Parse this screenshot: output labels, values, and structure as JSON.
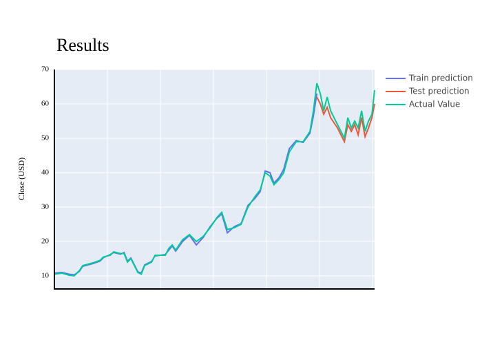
{
  "chart_data": {
    "type": "line",
    "title": "Results",
    "y_label": "Close (USD)",
    "xlim": [
      0,
      1209
    ],
    "xticks": [
      200,
      400,
      600,
      800,
      1000,
      1200
    ],
    "ylim": [
      6.2,
      70
    ],
    "yticks": [
      10,
      20,
      30,
      40,
      50,
      60,
      70
    ],
    "grid": true,
    "series": [
      {
        "name": "Train prediction",
        "color": "#636efa",
        "x": [
          0,
          29,
          55,
          75,
          94,
          107,
          146,
          172,
          185,
          211,
          224,
          250,
          263,
          276,
          289,
          315,
          328,
          341,
          367,
          380,
          419,
          432,
          445,
          458,
          484,
          510,
          536,
          562,
          588,
          614,
          632,
          653,
          679,
          705,
          731,
          757,
          777,
          796,
          814,
          829,
          848,
          866,
          887,
          913,
          939,
          965,
          978,
          991
        ],
        "values": [
          10.8,
          11,
          10.5,
          10.3,
          11.3,
          12.8,
          13.6,
          14.3,
          15.3,
          16.2,
          16.8,
          16.3,
          16.8,
          14.3,
          15.2,
          11.2,
          10.8,
          13.2,
          14.2,
          15.8,
          16.2,
          17.5,
          18.7,
          17.2,
          20,
          21.8,
          19,
          21.2,
          24.3,
          26.8,
          28,
          22.5,
          24.3,
          25.2,
          30.5,
          32.5,
          34.5,
          40.5,
          40,
          37,
          38.5,
          41,
          47,
          49.3,
          48.8,
          51.5,
          56.5,
          63
        ]
      },
      {
        "name": "Test prediction",
        "color": "#ef553b",
        "x": [
          991,
          1004,
          1017,
          1030,
          1043,
          1069,
          1095,
          1108,
          1121,
          1134,
          1147,
          1160,
          1173,
          1186,
          1199,
          1209
        ],
        "values": [
          62,
          60,
          57,
          59,
          56,
          53,
          49,
          54,
          52,
          54,
          51,
          56,
          50.5,
          53,
          56,
          60
        ]
      },
      {
        "name": "Actual Value",
        "color": "#00cc96",
        "x": [
          0,
          29,
          55,
          75,
          94,
          107,
          146,
          172,
          185,
          211,
          224,
          250,
          263,
          276,
          289,
          315,
          328,
          341,
          367,
          380,
          419,
          432,
          445,
          458,
          484,
          510,
          536,
          562,
          588,
          614,
          632,
          653,
          679,
          705,
          731,
          757,
          777,
          796,
          814,
          829,
          848,
          866,
          887,
          913,
          939,
          965,
          978,
          991,
          1004,
          1017,
          1030,
          1043,
          1069,
          1095,
          1108,
          1121,
          1134,
          1147,
          1160,
          1173,
          1186,
          1199,
          1209
        ],
        "values": [
          10.5,
          10.8,
          10.2,
          10,
          11.5,
          13,
          13.8,
          14.5,
          15.5,
          16,
          17,
          16.5,
          16.5,
          14,
          15,
          11,
          10.5,
          13,
          14,
          16,
          16,
          18,
          19,
          17.5,
          20.5,
          22,
          20,
          21.5,
          24,
          27,
          28.5,
          23.5,
          24,
          25,
          30,
          33,
          35,
          40,
          39,
          36.5,
          38,
          40,
          46,
          49,
          49,
          52,
          58,
          66,
          63,
          58,
          62,
          58,
          54,
          50,
          56,
          53,
          55,
          53,
          58,
          52,
          55,
          57,
          64
        ]
      }
    ]
  }
}
